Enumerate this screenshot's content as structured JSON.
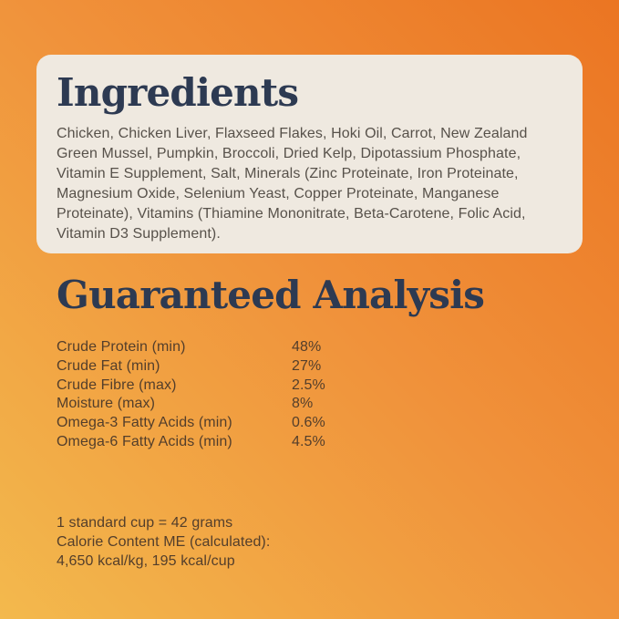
{
  "panel": {
    "ingredients": {
      "title": "Ingredients",
      "lines": [
        "Chicken, Chicken Liver, Flaxseed Flakes, Hoki Oil, Carrot, New Zealand",
        "Green Mussel, Pumpkin, Broccoli, Dried Kelp, Dipotassium Phosphate,",
        "Vitamin E Supplement, Salt, Minerals (Zinc Proteinate, Iron Proteinate,",
        "Magnesium Oxide, Selenium Yeast, Copper Proteinate, Manganese",
        "Proteinate), Vitamins (Thiamine Mononitrate, Beta-Carotene, Folic Acid,",
        "Vitamin D3 Supplement)."
      ]
    },
    "guaranteed_analysis": {
      "title": "Guaranteed Analysis",
      "rows": [
        {
          "label": "Crude Protein (min)",
          "value": "48%"
        },
        {
          "label": "Crude Fat (min)",
          "value": "27%"
        },
        {
          "label": "Crude Fibre (max)",
          "value": "2.5%"
        },
        {
          "label": "Moisture (max)",
          "value": "8%"
        },
        {
          "label": "Omega-3 Fatty Acids (min)",
          "value": "0.6%"
        },
        {
          "label": "Omega-6 Fatty Acids (min)",
          "value": "4.5%"
        }
      ]
    },
    "feeding_info": {
      "lines": [
        "1 standard cup = 42 grams",
        "Calorie Content ME (calculated):",
        "4,650 kcal/kg, 195 kcal/cup"
      ]
    }
  },
  "colors": {
    "bg_top_right": "#EB7522",
    "bg_mid": "#F0923B",
    "bg_bottom_left": "#F3B94D",
    "card_bg": "#EFE9E0",
    "heading_navy": "#2D3A52",
    "ingredients_text": "#57514A",
    "analysis_text": "#533E2B"
  }
}
